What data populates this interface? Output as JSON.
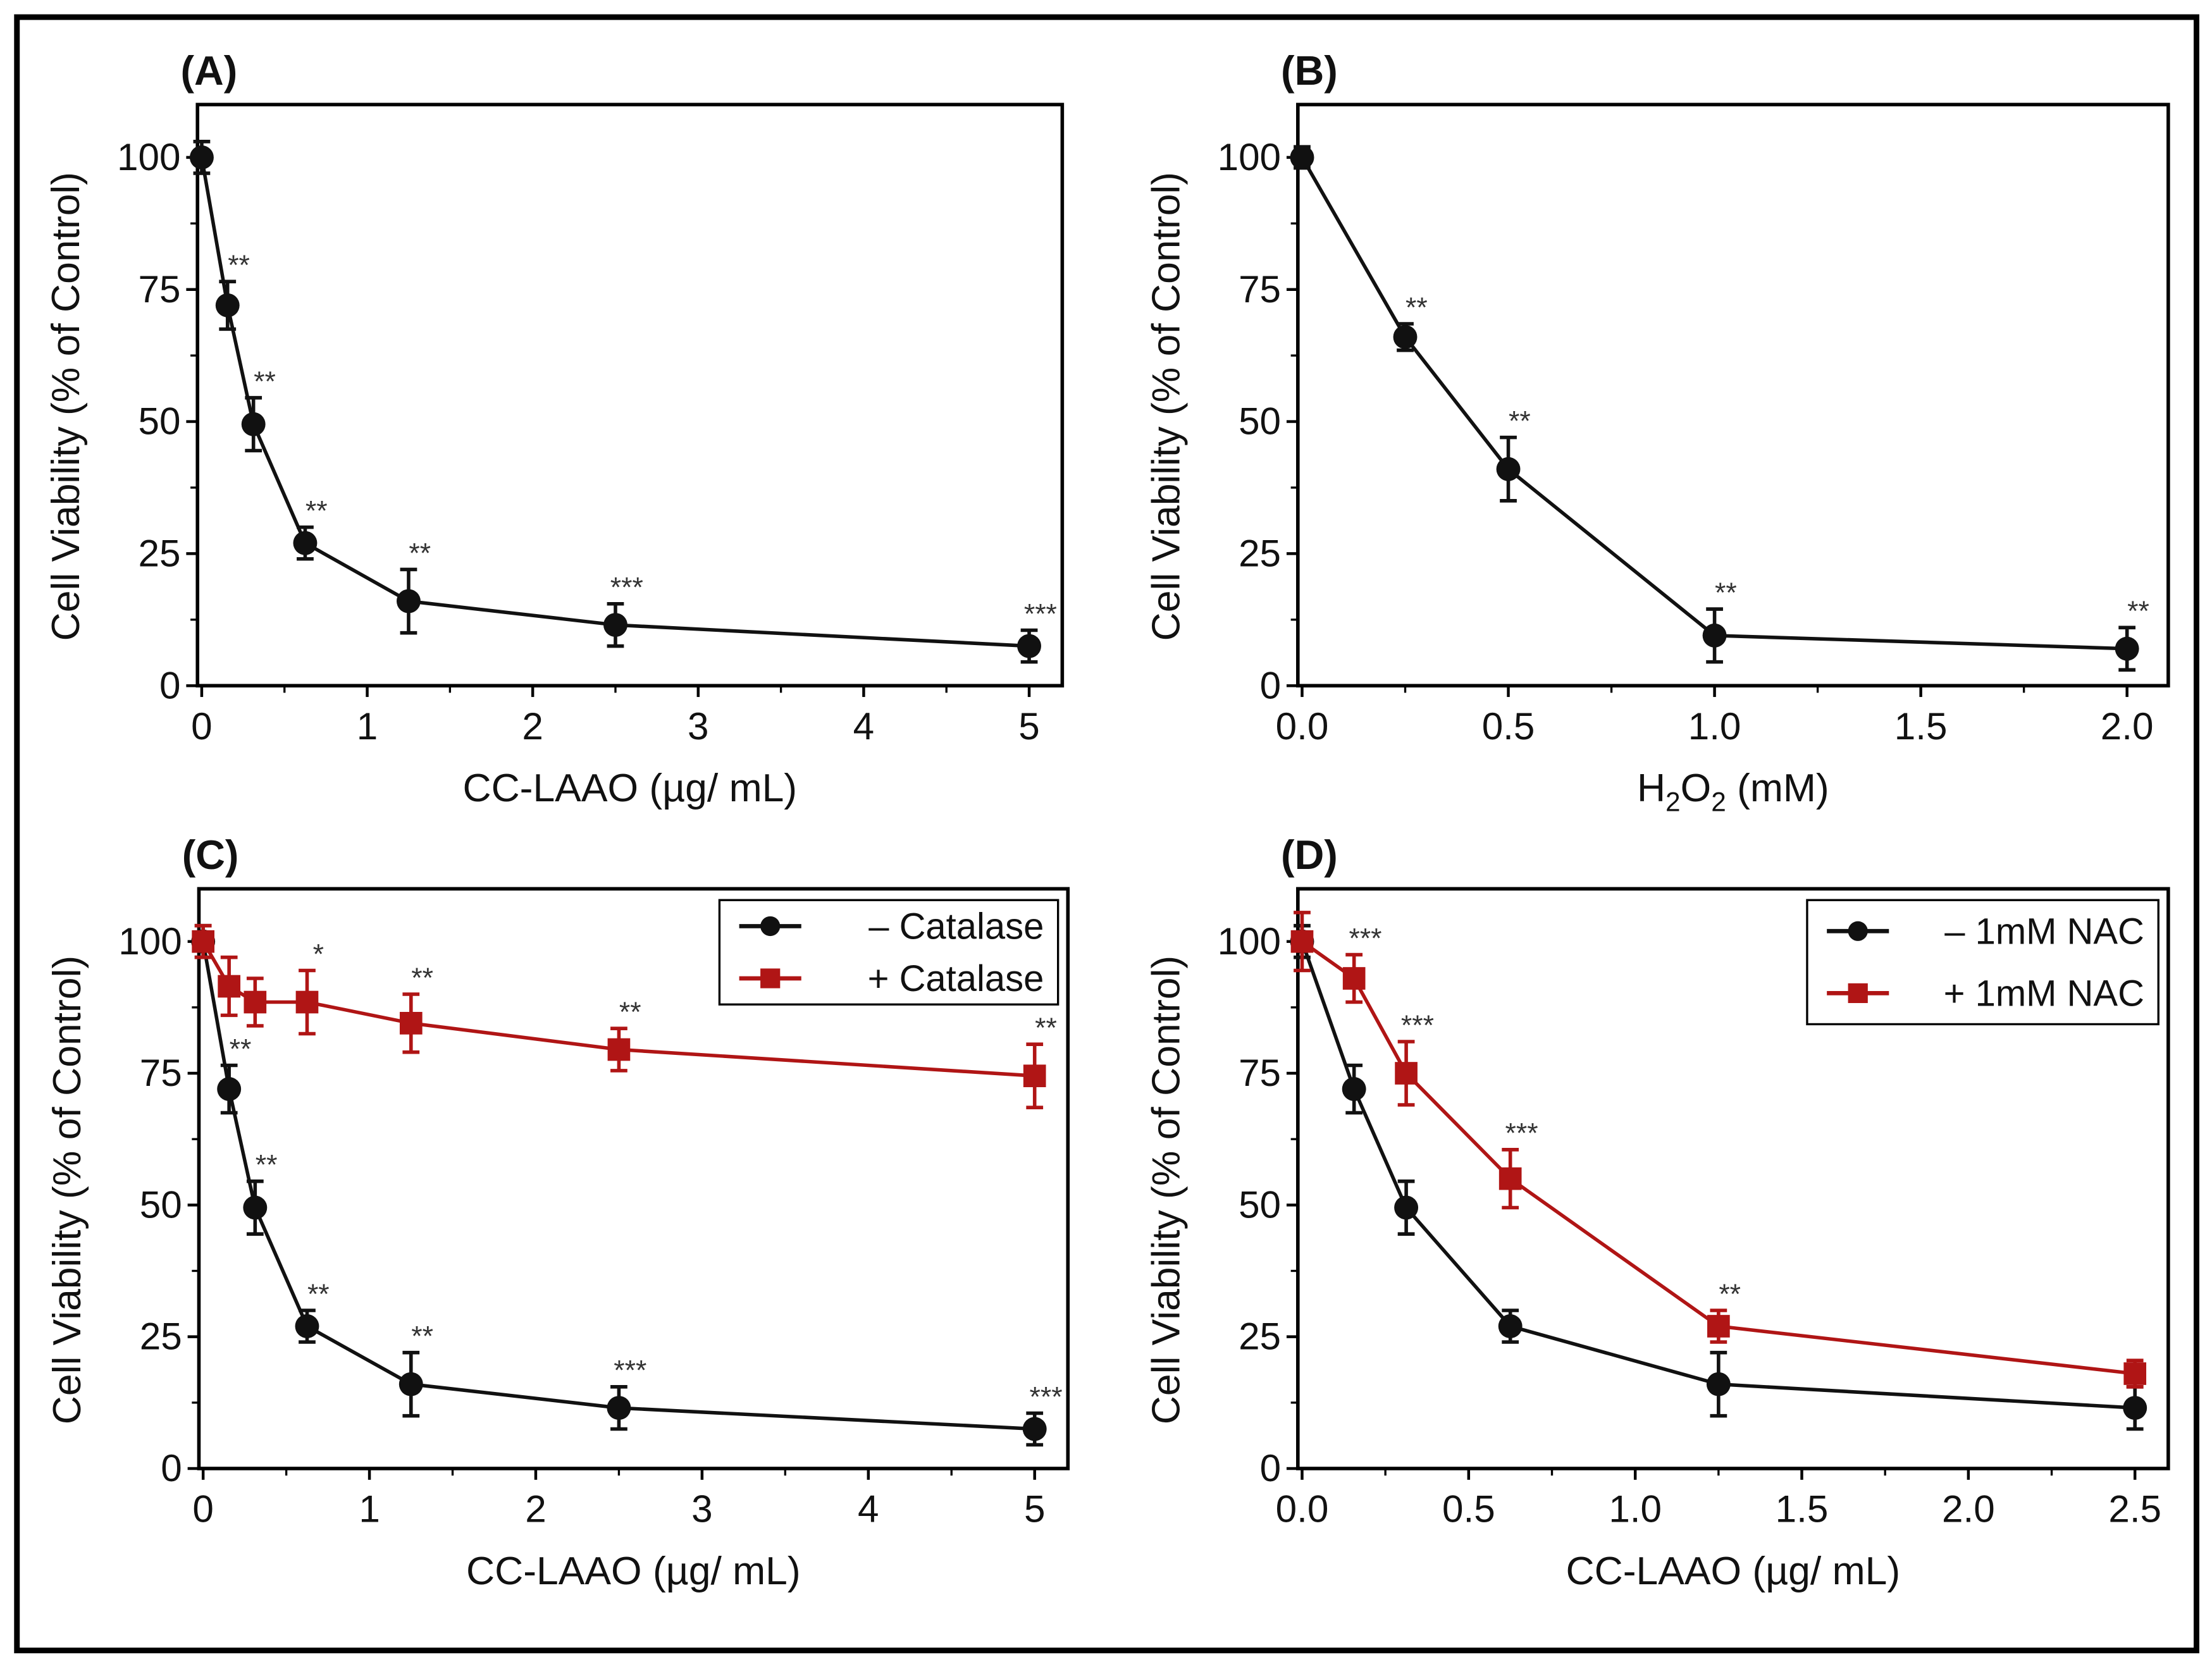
{
  "chart_data": [
    {
      "type": "line",
      "title": "(A)",
      "xlabel": "CC-LAAO (µg/ mL)",
      "ylabel": "Cell Viability (% of Control)",
      "xlim": [
        0,
        5.2
      ],
      "ylim": [
        0,
        110
      ],
      "xticks": [
        "0",
        "1",
        "2",
        "3",
        "4",
        "5"
      ],
      "xtick_values": [
        0,
        1,
        2,
        3,
        4,
        5
      ],
      "yticks": [
        "0",
        "25",
        "50",
        "75",
        "100"
      ],
      "ytick_values": [
        0,
        25,
        50,
        75,
        100
      ],
      "legend": null,
      "series": [
        {
          "name": "CC-LAAO",
          "color": "#111111",
          "marker": "circle",
          "x": [
            0,
            0.156,
            0.3125,
            0.625,
            1.25,
            2.5,
            5
          ],
          "y": [
            100,
            72,
            49.5,
            27,
            16,
            11.5,
            7.5
          ],
          "err": [
            3,
            4.5,
            5,
            3,
            6,
            4,
            3
          ],
          "sig": [
            "",
            "**",
            "**",
            "**",
            "**",
            "***",
            "***"
          ]
        }
      ]
    },
    {
      "type": "line",
      "title": "(B)",
      "xlabel": "H2O2 (mM)",
      "xlabel_parts": [
        "H",
        "2",
        "O",
        "2",
        " (mM)"
      ],
      "ylabel": "Cell Viability (% of Control)",
      "xlim": [
        0,
        2.1
      ],
      "ylim": [
        0,
        110
      ],
      "xticks": [
        "0.0",
        "0.5",
        "1.0",
        "1.5",
        "2.0"
      ],
      "xtick_values": [
        0,
        0.5,
        1,
        1.5,
        2
      ],
      "yticks": [
        "0",
        "25",
        "50",
        "75",
        "100"
      ],
      "ytick_values": [
        0,
        25,
        50,
        75,
        100
      ],
      "legend": null,
      "series": [
        {
          "name": "H2O2",
          "color": "#111111",
          "marker": "circle",
          "x": [
            0,
            0.25,
            0.5,
            1,
            2
          ],
          "y": [
            100,
            66,
            41,
            9.5,
            7
          ],
          "err": [
            2,
            2.5,
            6,
            5,
            4
          ],
          "sig": [
            "",
            "**",
            "**",
            "**",
            "**"
          ]
        }
      ]
    },
    {
      "type": "line",
      "title": "(C)",
      "xlabel": "CC-LAAO (µg/ mL)",
      "ylabel": "Cell Viability (% of Control)",
      "xlim": [
        0,
        5.2
      ],
      "ylim": [
        0,
        110
      ],
      "xticks": [
        "0",
        "1",
        "2",
        "3",
        "4",
        "5"
      ],
      "xtick_values": [
        0,
        1,
        2,
        3,
        4,
        5
      ],
      "yticks": [
        "0",
        "25",
        "50",
        "75",
        "100"
      ],
      "ytick_values": [
        0,
        25,
        50,
        75,
        100
      ],
      "legend": "top-right",
      "series": [
        {
          "name": "– Catalase",
          "color": "#111111",
          "marker": "circle",
          "x": [
            0,
            0.156,
            0.3125,
            0.625,
            1.25,
            2.5,
            5
          ],
          "y": [
            100,
            72,
            49.5,
            27,
            16,
            11.5,
            7.5
          ],
          "err": [
            3,
            4.5,
            5,
            3,
            6,
            4,
            3
          ],
          "sig": [
            "",
            "**",
            "**",
            "**",
            "**",
            "***",
            "***"
          ]
        },
        {
          "name": "+ Catalase",
          "color": "#b01515",
          "marker": "square",
          "x": [
            0,
            0.156,
            0.3125,
            0.625,
            1.25,
            2.5,
            5
          ],
          "y": [
            100,
            91.5,
            88.5,
            88.5,
            84.5,
            79.5,
            74.5
          ],
          "err": [
            3,
            5.5,
            4.5,
            6,
            5.5,
            4,
            6
          ],
          "sig": [
            "",
            "",
            "",
            "*",
            "**",
            "**",
            "**"
          ]
        }
      ]
    },
    {
      "type": "line",
      "title": "(D)",
      "xlabel": "CC-LAAO (µg/ mL)",
      "ylabel": "Cell Viability (% of Control)",
      "xlim": [
        0,
        2.6
      ],
      "ylim": [
        0,
        110
      ],
      "xticks": [
        "0.0",
        "0.5",
        "1.0",
        "1.5",
        "2.0",
        "2.5"
      ],
      "xtick_values": [
        0,
        0.5,
        1,
        1.5,
        2,
        2.5
      ],
      "yticks": [
        "0",
        "25",
        "50",
        "75",
        "100"
      ],
      "ytick_values": [
        0,
        25,
        50,
        75,
        100
      ],
      "legend": "top-right",
      "series": [
        {
          "name": "– 1mM NAC",
          "color": "#111111",
          "marker": "circle",
          "x": [
            0,
            0.156,
            0.3125,
            0.625,
            1.25,
            2.5
          ],
          "y": [
            100,
            72,
            49.5,
            27,
            16,
            11.5
          ],
          "err": [
            3,
            4.5,
            5,
            3,
            6,
            4
          ],
          "sig": [
            "",
            "",
            "",
            "",
            "",
            ""
          ]
        },
        {
          "name": "+ 1mM NAC",
          "color": "#b01515",
          "marker": "square",
          "x": [
            0,
            0.156,
            0.3125,
            0.625,
            1.25,
            2.5
          ],
          "y": [
            100,
            93,
            75,
            55,
            27,
            18
          ],
          "err": [
            5.5,
            4.5,
            6,
            5.5,
            3,
            2.5
          ],
          "sig": [
            "",
            "***",
            "***",
            "***",
            "**",
            ""
          ]
        }
      ]
    }
  ]
}
